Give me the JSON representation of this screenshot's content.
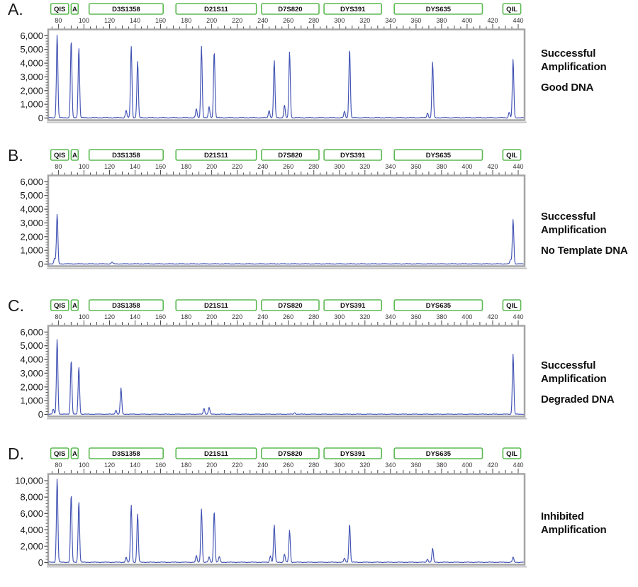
{
  "figure": {
    "colors": {
      "trace": "#4253b4",
      "marker_border": "#5cba52",
      "marker_text": "#111111",
      "frame": "#a5a5a5",
      "frame_shadow": "#c4c4c4",
      "tick": "#4a4a4a",
      "axis_text": "#1a1a1a"
    },
    "markers": [
      {
        "label": "QIS",
        "start": 74,
        "end": 88
      },
      {
        "label": "A",
        "start": 90,
        "end": 95.5
      },
      {
        "label": "D3S1358",
        "start": 104,
        "end": 162
      },
      {
        "label": "D21S11",
        "start": 172,
        "end": 235
      },
      {
        "label": "D7S820",
        "start": 239,
        "end": 284
      },
      {
        "label": "DYS391",
        "start": 288,
        "end": 333
      },
      {
        "label": "DYS635",
        "start": 343,
        "end": 412
      },
      {
        "label": "QIL",
        "start": 428,
        "end": 442
      }
    ]
  },
  "chart_data": [
    {
      "type": "line",
      "panel_label": "A.",
      "annotation_main": "Successful Amplification",
      "annotation_sub": "Good DNA",
      "xlim": [
        72,
        445
      ],
      "ylim": [
        0,
        6000
      ],
      "xticks": [
        80,
        100,
        120,
        140,
        160,
        180,
        200,
        220,
        240,
        260,
        280,
        300,
        320,
        340,
        360,
        380,
        400,
        420,
        440
      ],
      "yticks": [
        6000,
        5000,
        4000,
        3000,
        2000,
        1000,
        0
      ],
      "ytick_labels": [
        "6,000",
        "5,000",
        "4,000",
        "3,000",
        "2,000",
        "1,000",
        "0"
      ],
      "y_minor_step": 200,
      "noise": 55,
      "peaks": [
        [
          79,
          6050
        ],
        [
          90,
          5650
        ],
        [
          96,
          5100
        ],
        [
          133,
          550
        ],
        [
          137,
          5200
        ],
        [
          142,
          4100
        ],
        [
          188,
          650
        ],
        [
          192,
          5200
        ],
        [
          198,
          800
        ],
        [
          202,
          4850
        ],
        [
          245,
          550
        ],
        [
          249,
          4150
        ],
        [
          257,
          900
        ],
        [
          261,
          4800
        ],
        [
          304,
          450
        ],
        [
          308,
          5050
        ],
        [
          369,
          350
        ],
        [
          373,
          4050
        ],
        [
          433,
          400
        ],
        [
          436,
          4250
        ]
      ]
    },
    {
      "type": "line",
      "panel_label": "B.",
      "annotation_main": "Successful Amplification",
      "annotation_sub": "No Template DNA",
      "xlim": [
        72,
        445
      ],
      "ylim": [
        0,
        6000
      ],
      "xticks": [
        80,
        100,
        120,
        140,
        160,
        180,
        200,
        220,
        240,
        260,
        280,
        300,
        320,
        340,
        360,
        380,
        400,
        420,
        440
      ],
      "yticks": [
        6000,
        5000,
        4000,
        3000,
        2000,
        1000,
        0
      ],
      "ytick_labels": [
        "6,000",
        "5,000",
        "4,000",
        "3,000",
        "2,000",
        "1,000",
        "0"
      ],
      "y_minor_step": 200,
      "noise": 38,
      "peaks": [
        [
          77,
          400
        ],
        [
          79,
          3600
        ],
        [
          122,
          130
        ],
        [
          434,
          300
        ],
        [
          436,
          3250
        ]
      ]
    },
    {
      "type": "line",
      "panel_label": "C.",
      "annotation_main": "Successful Amplification",
      "annotation_sub": "Degraded DNA",
      "xlim": [
        72,
        445
      ],
      "ylim": [
        0,
        6000
      ],
      "xticks": [
        80,
        100,
        120,
        140,
        160,
        180,
        200,
        220,
        240,
        260,
        280,
        300,
        320,
        340,
        360,
        380,
        400,
        420,
        440
      ],
      "yticks": [
        6000,
        5000,
        4000,
        3000,
        2000,
        1000,
        0
      ],
      "ytick_labels": [
        "6,000",
        "5,000",
        "4,000",
        "3,000",
        "2,000",
        "1,000",
        "0"
      ],
      "y_minor_step": 200,
      "noise": 34,
      "peaks": [
        [
          76,
          350
        ],
        [
          79,
          5450
        ],
        [
          90,
          3950
        ],
        [
          96,
          3450
        ],
        [
          125,
          300
        ],
        [
          129,
          1900
        ],
        [
          194,
          420
        ],
        [
          198,
          500
        ],
        [
          265,
          100
        ],
        [
          436,
          4400
        ]
      ]
    },
    {
      "type": "line",
      "panel_label": "D.",
      "annotation_main": "Inhibited Amplification",
      "annotation_sub": "",
      "xlim": [
        72,
        445
      ],
      "ylim": [
        0,
        10000
      ],
      "xticks": [
        80,
        100,
        120,
        140,
        160,
        180,
        200,
        220,
        240,
        260,
        280,
        300,
        320,
        340,
        360,
        380,
        400,
        420,
        440
      ],
      "yticks": [
        10000,
        8000,
        6000,
        4000,
        2000,
        0
      ],
      "ytick_labels": [
        "10,000",
        "8,000",
        "6,000",
        "4,000",
        "2,000",
        "0"
      ],
      "y_minor_step": 400,
      "noise": 80,
      "peaks": [
        [
          79,
          10200
        ],
        [
          90,
          8300
        ],
        [
          96,
          7450
        ],
        [
          133,
          600
        ],
        [
          137,
          7000
        ],
        [
          142,
          5900
        ],
        [
          188,
          800
        ],
        [
          192,
          6550
        ],
        [
          198,
          650
        ],
        [
          202,
          6250
        ],
        [
          206,
          700
        ],
        [
          246,
          800
        ],
        [
          249,
          4550
        ],
        [
          257,
          1000
        ],
        [
          261,
          3900
        ],
        [
          304,
          500
        ],
        [
          308,
          4700
        ],
        [
          369,
          400
        ],
        [
          373,
          1700
        ],
        [
          436,
          620
        ]
      ]
    }
  ]
}
